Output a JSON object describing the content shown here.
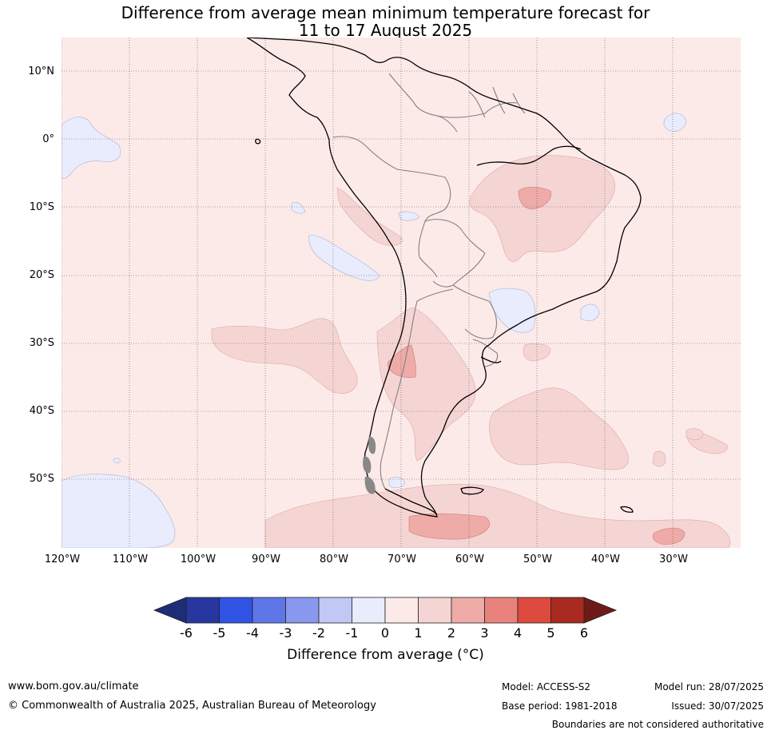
{
  "title": {
    "line1": "Difference from average mean minimum temperature forecast for",
    "line2": "11 to 17 August 2025"
  },
  "map": {
    "latitude_labels": [
      "10°N",
      "0°",
      "10°S",
      "20°S",
      "30°S",
      "40°S",
      "50°S"
    ],
    "longitude_labels": [
      "120°W",
      "110°W",
      "100°W",
      "90°W",
      "80°W",
      "70°W",
      "60°W",
      "50°W",
      "40°W",
      "30°W"
    ],
    "colors": {
      "background_anomaly_0_1": "#fceae8",
      "anomaly_1_2": "#f5d5d3",
      "anomaly_2_3": "#eeaba7",
      "anomaly_-1_0": "#e9ecfc",
      "coastline": "#000000",
      "borders": "#808080",
      "gridlines": "#555555"
    }
  },
  "colorbar": {
    "ticks": [
      "-6",
      "-5",
      "-4",
      "-3",
      "-2",
      "-1",
      "0",
      "1",
      "2",
      "3",
      "4",
      "5",
      "6"
    ],
    "colors": [
      "#28369f",
      "#3153e4",
      "#5f76e8",
      "#8898ee",
      "#c1c8f5",
      "#e9ecfc",
      "#fceae8",
      "#f5d5d3",
      "#eeaba7",
      "#e9827c",
      "#dc4b3d",
      "#a82a20"
    ],
    "extend_low_color": "#1f2d78",
    "extend_high_color": "#6e1a17",
    "label": "Difference from average (°C)"
  },
  "footer": {
    "website": "www.bom.gov.au/climate",
    "copyright": "© Commonwealth of Australia 2025, Australian Bureau of Meteorology",
    "model": "Model: ACCESS-S2",
    "base_period": "Base period: 1981-2018",
    "model_run": "Model run: 28/07/2025",
    "issued": "Issued: 30/07/2025",
    "disclaimer": "Boundaries are not considered authoritative"
  }
}
